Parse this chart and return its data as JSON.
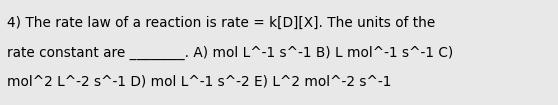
{
  "lines": [
    "4) The rate law of a reaction is rate = k[D][X]. The units of the",
    "rate constant are ________. A) mol L^-1 s^-1 B) L mol^-1 s^-1 C)",
    "mol^2 L^-2 s^-1 D) mol L^-1 s^-2 E) L^2 mol^-2 s^-1"
  ],
  "background_color": "#e8e8e8",
  "text_color": "#000000",
  "font_size": 9.8,
  "fig_width": 5.58,
  "fig_height": 1.05,
  "dpi": 100
}
